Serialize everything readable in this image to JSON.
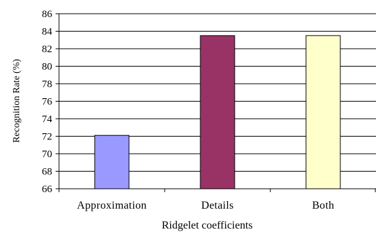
{
  "chart_data": {
    "type": "bar",
    "categories": [
      "Approximation",
      "Details",
      "Both"
    ],
    "values": [
      72.1,
      83.5,
      83.5
    ],
    "bar_colors": [
      "#9999ff",
      "#993366",
      "#ffffcc"
    ],
    "xlabel": "Ridgelet coefficients",
    "ylabel": "Recognition Rate (%)",
    "ylim": [
      66,
      86
    ],
    "yticks": [
      "66",
      "68",
      "70",
      "72",
      "74",
      "76",
      "78",
      "80",
      "82",
      "84",
      "86"
    ],
    "grid": true,
    "legend": "none"
  }
}
